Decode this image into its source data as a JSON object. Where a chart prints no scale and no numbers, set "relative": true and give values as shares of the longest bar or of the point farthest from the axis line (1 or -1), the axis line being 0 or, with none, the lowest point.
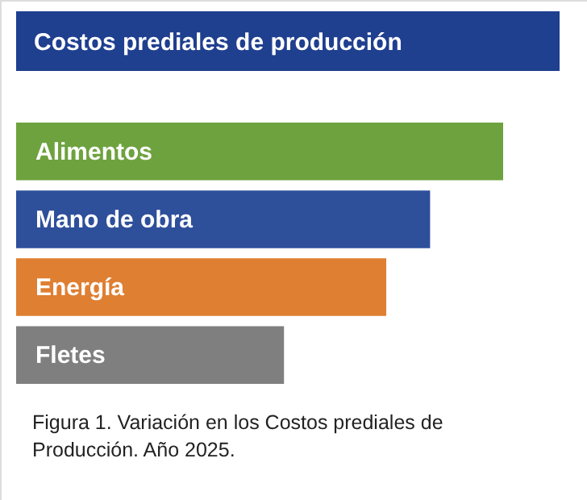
{
  "chart_data": {
    "type": "bar",
    "orientation": "horizontal",
    "relative": true,
    "title": "Costos prediales de producción",
    "categories": [
      "Alimentos",
      "Mano de obra",
      "Energía",
      "Fletes"
    ],
    "values": [
      1,
      0.85,
      0.76,
      0.55
    ],
    "colors": [
      "#6ea23f",
      "#2e4f9a",
      "#df7f32",
      "#7f7f7f"
    ],
    "annotations": [
      "Figura 1. Variación en los Costos prediales de Producción. Año 2025."
    ]
  }
}
